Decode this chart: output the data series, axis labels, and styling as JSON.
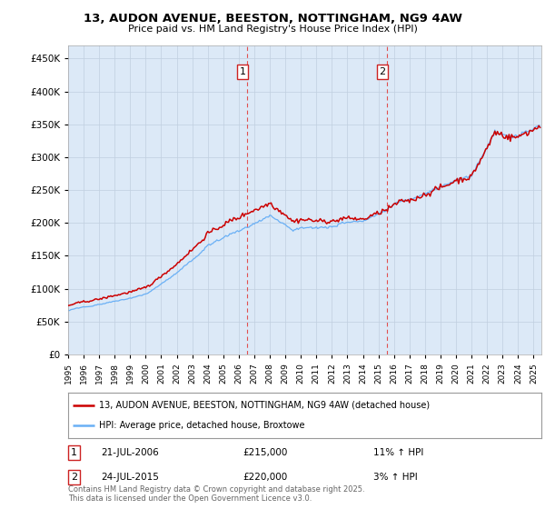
{
  "title_line1": "13, AUDON AVENUE, BEESTON, NOTTINGHAM, NG9 4AW",
  "title_line2": "Price paid vs. HM Land Registry's House Price Index (HPI)",
  "legend_line1": "13, AUDON AVENUE, BEESTON, NOTTINGHAM, NG9 4AW (detached house)",
  "legend_line2": "HPI: Average price, detached house, Broxtowe",
  "annotation1_label": "1",
  "annotation1_date": "21-JUL-2006",
  "annotation1_price": "£215,000",
  "annotation1_hpi": "11% ↑ HPI",
  "annotation2_label": "2",
  "annotation2_date": "24-JUL-2015",
  "annotation2_price": "£220,000",
  "annotation2_hpi": "3% ↑ HPI",
  "footnote": "Contains HM Land Registry data © Crown copyright and database right 2025.\nThis data is licensed under the Open Government Licence v3.0.",
  "sale1_year": 2006.55,
  "sale1_price": 215000,
  "sale2_year": 2015.55,
  "sale2_price": 220000,
  "hpi_color": "#6ab0f5",
  "price_color": "#cc0000",
  "vline_color": "#e05050",
  "plot_bg_color": "#dce9f7",
  "grid_color": "#c0cfe0",
  "ylim": [
    0,
    470000
  ],
  "xlim_start": 1995,
  "xlim_end": 2025.5
}
